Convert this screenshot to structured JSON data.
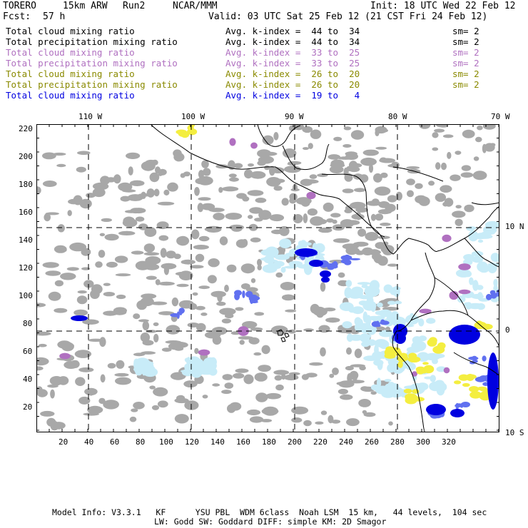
{
  "header": {
    "model": "TORERO",
    "resolution": "15km ARW",
    "run": "Run2",
    "center": "NCAR/MMM",
    "init": "Init: 18 UTC Wed 22 Feb 12",
    "fcst_label": "Fcst:",
    "fcst_value": "57 h",
    "valid": "Valid: 03 UTC Sat 25 Feb 12 (21 CST Fri 24 Feb 12)"
  },
  "legend": [
    {
      "field": "Total cloud mixing ratio",
      "avg": "Avg. k-index =  44 to  34",
      "sm": "sm= 2",
      "color": "#000000"
    },
    {
      "field": "Total precipitation mixing ratio",
      "avg": "Avg. k-index =  44 to  34",
      "sm": "sm= 2",
      "color": "#000000"
    },
    {
      "field": "Total cloud mixing ratio",
      "avg": "Avg. k-index =  33 to  25",
      "sm": "sm= 2",
      "color": "#b070c0"
    },
    {
      "field": "Total precipitation mixing ratio",
      "avg": "Avg. k-index =  33 to  25",
      "sm": "sm= 2",
      "color": "#b070c0"
    },
    {
      "field": "Total cloud mixing ratio",
      "avg": "Avg. k-index =  26 to  20",
      "sm": "sm= 2",
      "color": "#8a8a00"
    },
    {
      "field": "Total precipitation mixing ratio",
      "avg": "Avg. k-index =  26 to  20",
      "sm": "sm= 2",
      "color": "#8a8a00"
    },
    {
      "field": "Total cloud mixing ratio",
      "avg": "Avg. k-index =  19 to   4",
      "sm": "",
      "color": "#0000e0"
    }
  ],
  "axes": {
    "top_lon_labels": [
      "110 W",
      "100 W",
      "90 W",
      "80 W",
      "70 W"
    ],
    "right_lat_labels": [
      "10 N",
      "0",
      "10 S"
    ],
    "left_y_ticks": [
      "220",
      "200",
      "180",
      "160",
      "140",
      "120",
      "100",
      "80",
      "60",
      "40",
      "20"
    ],
    "bottom_x_ticks": [
      "20",
      "40",
      "60",
      "80",
      "100",
      "120",
      "140",
      "160",
      "180",
      "200",
      "220",
      "240",
      "260",
      "280",
      "300",
      "320"
    ]
  },
  "colors": {
    "gray_cloud": "#a8a8a8",
    "purple": "#b070c0",
    "yellow": "#f4ee40",
    "blue_light": "#c8ecf8",
    "blue_mid": "#6070f0",
    "blue_dark": "#0000e0"
  },
  "footer": {
    "line1": "Model Info: V3.3.1   KF      YSU PBL  WDM 6class  Noah LSM  15 km,   44 levels,  104 sec",
    "line2": "LW: Godd SW: Goddard DIFF: simple KM: 2D Smagor"
  }
}
